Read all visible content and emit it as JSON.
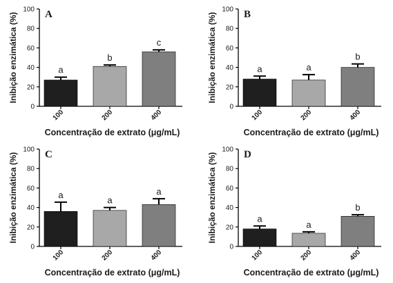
{
  "figure": {
    "colors": {
      "bar_100": "#1f1f1f",
      "bar_200": "#a8a8a8",
      "bar_400": "#7f7f7f",
      "axis": "#000000"
    }
  },
  "chart_data": [
    {
      "type": "bar",
      "panel": "A",
      "categories": [
        "100",
        "200",
        "400"
      ],
      "values": [
        27,
        41,
        56
      ],
      "errors": [
        3,
        1.5,
        2
      ],
      "significance": [
        "a",
        "b",
        "c"
      ],
      "xlabel": "Concentração de extrato (μg/mL)",
      "ylabel": "Inibição enzimática (%)",
      "ylim": [
        0,
        100
      ],
      "yticks": [
        "0",
        "20",
        "40",
        "60",
        "80",
        "100"
      ],
      "grid": false,
      "legend": "none"
    },
    {
      "type": "bar",
      "panel": "B",
      "categories": [
        "100",
        "200",
        "400"
      ],
      "values": [
        28,
        27,
        40
      ],
      "errors": [
        3,
        5.5,
        3.5
      ],
      "significance": [
        "a",
        "a",
        "b"
      ],
      "xlabel": "Concentração de extrato (μg/mL)",
      "ylabel": "Inibição enzimática (%)",
      "ylim": [
        0,
        100
      ],
      "yticks": [
        "0",
        "20",
        "40",
        "60",
        "80",
        "100"
      ],
      "grid": false,
      "legend": "none"
    },
    {
      "type": "bar",
      "panel": "C",
      "categories": [
        "100",
        "200",
        "400"
      ],
      "values": [
        36,
        37,
        43
      ],
      "errors": [
        9.5,
        3,
        6
      ],
      "significance": [
        "a",
        "a",
        "a"
      ],
      "xlabel": "Concentração de extrato (μg/mL)",
      "ylabel": "Inibição enzimática (%)",
      "ylim": [
        0,
        100
      ],
      "yticks": [
        "0",
        "20",
        "40",
        "60",
        "80",
        "100"
      ],
      "grid": false,
      "legend": "none"
    },
    {
      "type": "bar",
      "panel": "D",
      "categories": [
        "100",
        "200",
        "400"
      ],
      "values": [
        18,
        13.5,
        31
      ],
      "errors": [
        3,
        1.5,
        1.5
      ],
      "significance": [
        "a",
        "a",
        "b"
      ],
      "xlabel": "Concentração de extrato (μg/mL)",
      "ylabel": "Inibição enzimática (%)",
      "ylim": [
        0,
        100
      ],
      "yticks": [
        "0",
        "20",
        "40",
        "60",
        "80",
        "100"
      ],
      "grid": false,
      "legend": "none"
    }
  ]
}
